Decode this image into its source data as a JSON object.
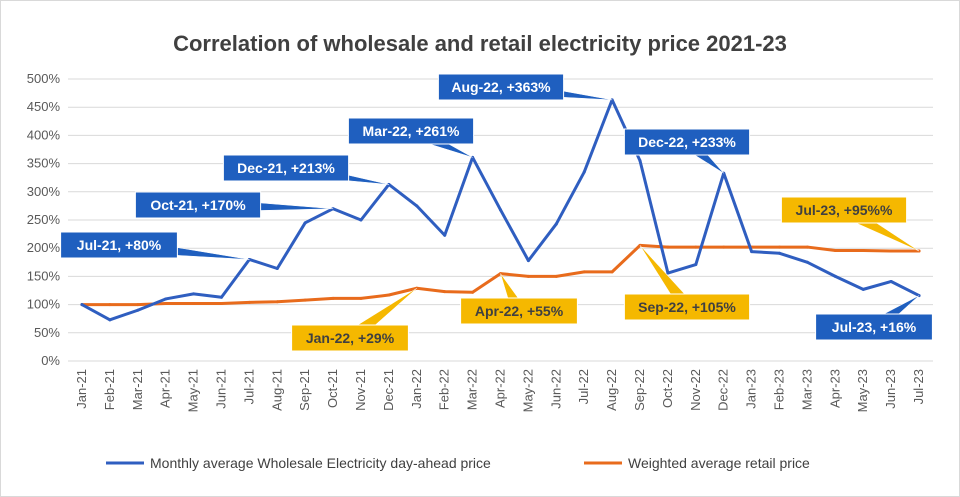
{
  "chart_data": {
    "type": "line",
    "title": "Correlation of wholesale and retail electricity price 2021-23",
    "xlabel": "",
    "ylabel": "",
    "ylim": [
      0,
      500
    ],
    "yticks": [
      "0%",
      "50%",
      "100%",
      "150%",
      "200%",
      "250%",
      "300%",
      "350%",
      "400%",
      "450%",
      "500%"
    ],
    "grid": true,
    "legend_position": "bottom",
    "categories": [
      "Jan-21",
      "Feb-21",
      "Mar-21",
      "Apr-21",
      "May-21",
      "Jun-21",
      "Jul-21",
      "Aug-21",
      "Sep-21",
      "Oct-21",
      "Nov-21",
      "Dec-21",
      "Jan-22",
      "Feb-22",
      "Mar-22",
      "Apr-22",
      "May-22",
      "Jun-22",
      "Jul-22",
      "Aug-22",
      "Sep-22",
      "Oct-22",
      "Nov-22",
      "Dec-22",
      "Jan-23",
      "Feb-23",
      "Mar-23",
      "Apr-23",
      "May-23",
      "Jun-23",
      "Jul-23"
    ],
    "series": [
      {
        "name": "Monthly average Wholesale Electricity day-ahead price",
        "color": "#2f5ec0",
        "values": [
          100,
          73,
          90,
          110,
          119,
          113,
          180,
          164,
          245,
          270,
          250,
          313,
          275,
          223,
          361,
          268,
          178,
          243,
          335,
          463,
          355,
          156,
          171,
          333,
          194,
          191,
          175,
          150,
          127,
          141,
          116
        ]
      },
      {
        "name": "Weighted average retail price",
        "color": "#e86b1c",
        "values": [
          100,
          100,
          100,
          102,
          102,
          102,
          104,
          105,
          108,
          111,
          111,
          117,
          129,
          123,
          122,
          155,
          150,
          150,
          158,
          158,
          205,
          202,
          202,
          202,
          202,
          202,
          202,
          196,
          196,
          195,
          195
        ]
      }
    ],
    "annotations": [
      {
        "text": "Jul-21, +80%",
        "series": 0,
        "index": 6,
        "style": "blue"
      },
      {
        "text": "Oct-21, +170%",
        "series": 0,
        "index": 9,
        "style": "blue"
      },
      {
        "text": "Dec-21, +213%",
        "series": 0,
        "index": 11,
        "style": "blue"
      },
      {
        "text": "Mar-22, +261%",
        "series": 0,
        "index": 14,
        "style": "blue"
      },
      {
        "text": "Aug-22, +363%",
        "series": 0,
        "index": 19,
        "style": "blue"
      },
      {
        "text": "Dec-22, +233%",
        "series": 0,
        "index": 23,
        "style": "blue"
      },
      {
        "text": "Jul-23, +16%",
        "series": 0,
        "index": 30,
        "style": "blue"
      },
      {
        "text": "Jan-22, +29%",
        "series": 1,
        "index": 12,
        "style": "yellow"
      },
      {
        "text": "Apr-22, +55%",
        "series": 1,
        "index": 15,
        "style": "yellow"
      },
      {
        "text": "Sep-22, +105%",
        "series": 1,
        "index": 20,
        "style": "yellow"
      },
      {
        "text": "Jul-23, +95%%",
        "series": 1,
        "index": 30,
        "style": "yellow"
      }
    ],
    "callout_colors": {
      "blue_fill": "#1f5fbf",
      "blue_text": "#ffffff",
      "yellow_fill": "#f5b800",
      "yellow_text": "#404040"
    }
  }
}
